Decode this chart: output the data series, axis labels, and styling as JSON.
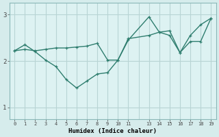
{
  "xlabel": "Humidex (Indice chaleur)",
  "background_color": "#d6ecec",
  "plot_bg_color": "#ddf2f2",
  "line_color": "#2e7d6e",
  "grid_color": "#b8d4d4",
  "spine_color": "#8ab8b8",
  "xlim": [
    -0.5,
    19.5
  ],
  "ylim": [
    0.75,
    3.25
  ],
  "yticks": [
    1,
    2,
    3
  ],
  "xticks": [
    0,
    1,
    2,
    3,
    4,
    5,
    6,
    7,
    8,
    9,
    10,
    11,
    13,
    14,
    15,
    16,
    17,
    18,
    19
  ],
  "xgrid": [
    0,
    1,
    2,
    3,
    4,
    5,
    6,
    7,
    8,
    9,
    10,
    11,
    12,
    13,
    14,
    15,
    16,
    17,
    18,
    19
  ],
  "line1_x": [
    0,
    1,
    2,
    3,
    4,
    5,
    6,
    7,
    8,
    9,
    10,
    11,
    13,
    14,
    15,
    16,
    17,
    18,
    19
  ],
  "line1_y": [
    2.22,
    2.35,
    2.2,
    2.02,
    1.88,
    1.6,
    1.42,
    1.57,
    1.72,
    1.75,
    2.02,
    2.45,
    2.95,
    2.62,
    2.55,
    2.18,
    2.42,
    2.42,
    2.92
  ],
  "line2_x": [
    0,
    1,
    2,
    3,
    4,
    5,
    6,
    7,
    8,
    9,
    10,
    11,
    13,
    14,
    15,
    16,
    17,
    18,
    19
  ],
  "line2_y": [
    2.22,
    2.25,
    2.22,
    2.25,
    2.28,
    2.28,
    2.3,
    2.32,
    2.38,
    2.02,
    2.02,
    2.48,
    2.55,
    2.62,
    2.65,
    2.18,
    2.55,
    2.78,
    2.92
  ]
}
